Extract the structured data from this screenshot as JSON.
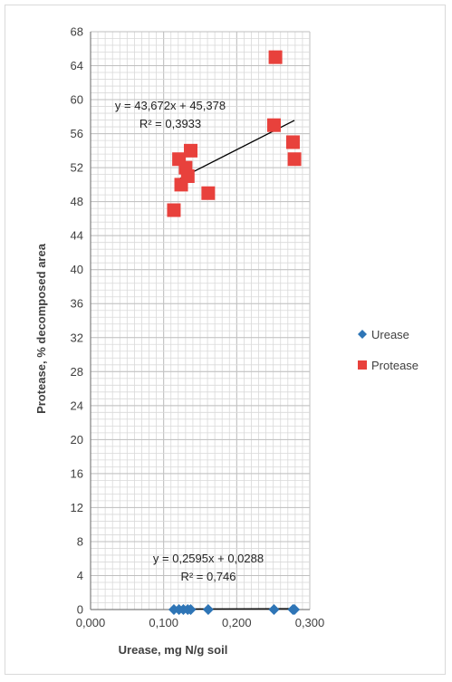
{
  "chart_data": {
    "type": "scatter",
    "xlabel": "Urease, mg N/g soil",
    "ylabel": "Protease, % decomposed area",
    "xlim": [
      0,
      0.3
    ],
    "ylim": [
      0,
      68
    ],
    "x_ticks": [
      "0,000",
      "0,100",
      "0,200",
      "0,300"
    ],
    "y_ticks": [
      "0",
      "4",
      "8",
      "12",
      "16",
      "20",
      "24",
      "28",
      "32",
      "36",
      "40",
      "44",
      "48",
      "52",
      "56",
      "60",
      "64",
      "68"
    ],
    "grid": "major and minor",
    "legend_position": "right",
    "series": [
      {
        "name": "Urease",
        "marker": "diamond",
        "color": "#2e75b6",
        "x": [
          0.114,
          0.121,
          0.127,
          0.133,
          0.137,
          0.161,
          0.251,
          0.277,
          0.279
        ],
        "y": [
          0,
          0,
          0,
          0,
          0,
          0,
          0,
          0,
          0
        ],
        "trendline": {
          "equation": "y = 0,2595x + 0,0288",
          "r2": "R² = 0,746",
          "x_range": [
            0.114,
            0.279
          ]
        }
      },
      {
        "name": "Protease",
        "marker": "square",
        "color": "#e8413c",
        "x": [
          0.114,
          0.121,
          0.124,
          0.13,
          0.133,
          0.137,
          0.161,
          0.251,
          0.253,
          0.277,
          0.279
        ],
        "y": [
          47,
          53,
          50,
          52,
          51,
          54,
          49,
          57,
          65,
          55,
          53
        ],
        "trendline": {
          "equation": "y = 43,672x + 45,378",
          "r2": "R² = 0,3933",
          "x_range": [
            0.12,
            0.279
          ]
        }
      }
    ]
  }
}
